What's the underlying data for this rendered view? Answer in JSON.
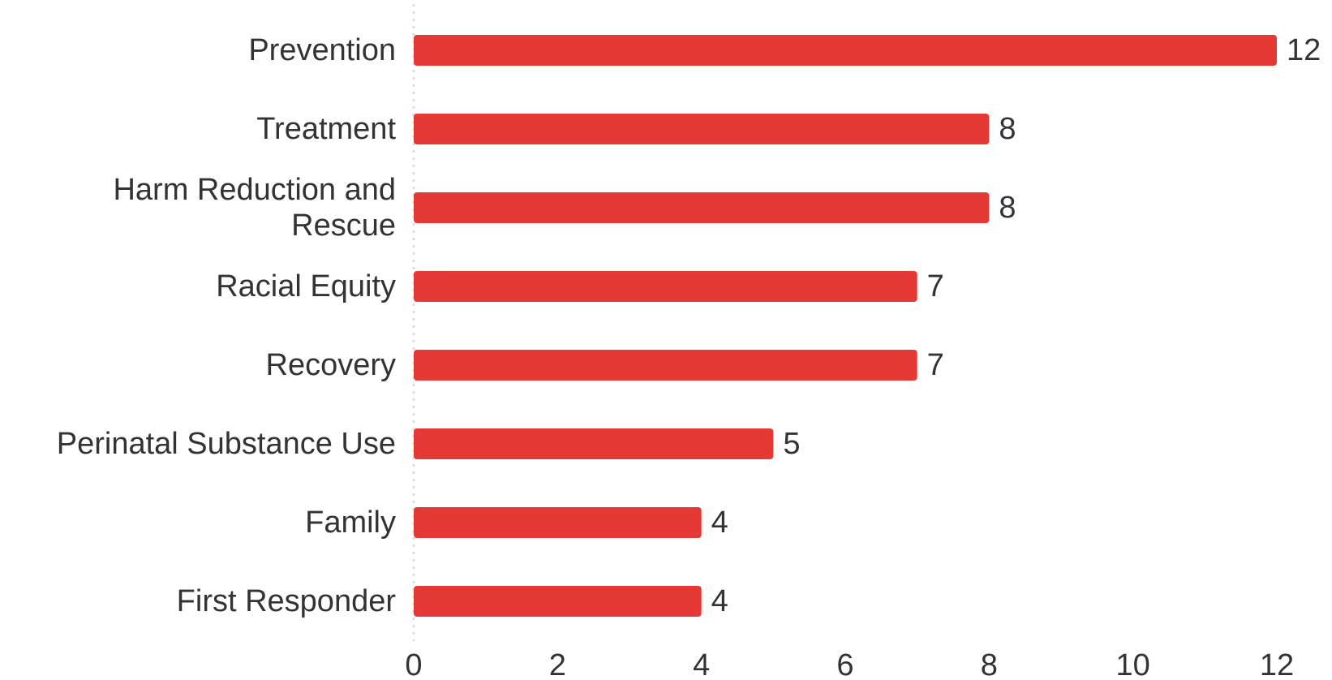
{
  "chart_data": {
    "type": "bar",
    "orientation": "horizontal",
    "title": "",
    "xlabel": "",
    "ylabel": "",
    "categories": [
      [
        "Prevention"
      ],
      [
        "Treatment"
      ],
      [
        "Harm Reduction and",
        "Rescue"
      ],
      [
        "Racial Equity"
      ],
      [
        "Recovery"
      ],
      [
        "Perinatal Substance Use"
      ],
      [
        "Family"
      ],
      [
        "First Responder"
      ]
    ],
    "values": [
      12,
      8,
      8,
      7,
      7,
      5,
      4,
      4
    ],
    "xlim": [
      0,
      12
    ],
    "xticks": [
      0,
      2,
      4,
      6,
      8,
      10,
      12
    ],
    "grid": false,
    "legend": "none",
    "colors": {
      "bar": "#e53935",
      "text": "#333333",
      "axis": "#dddddd"
    }
  }
}
